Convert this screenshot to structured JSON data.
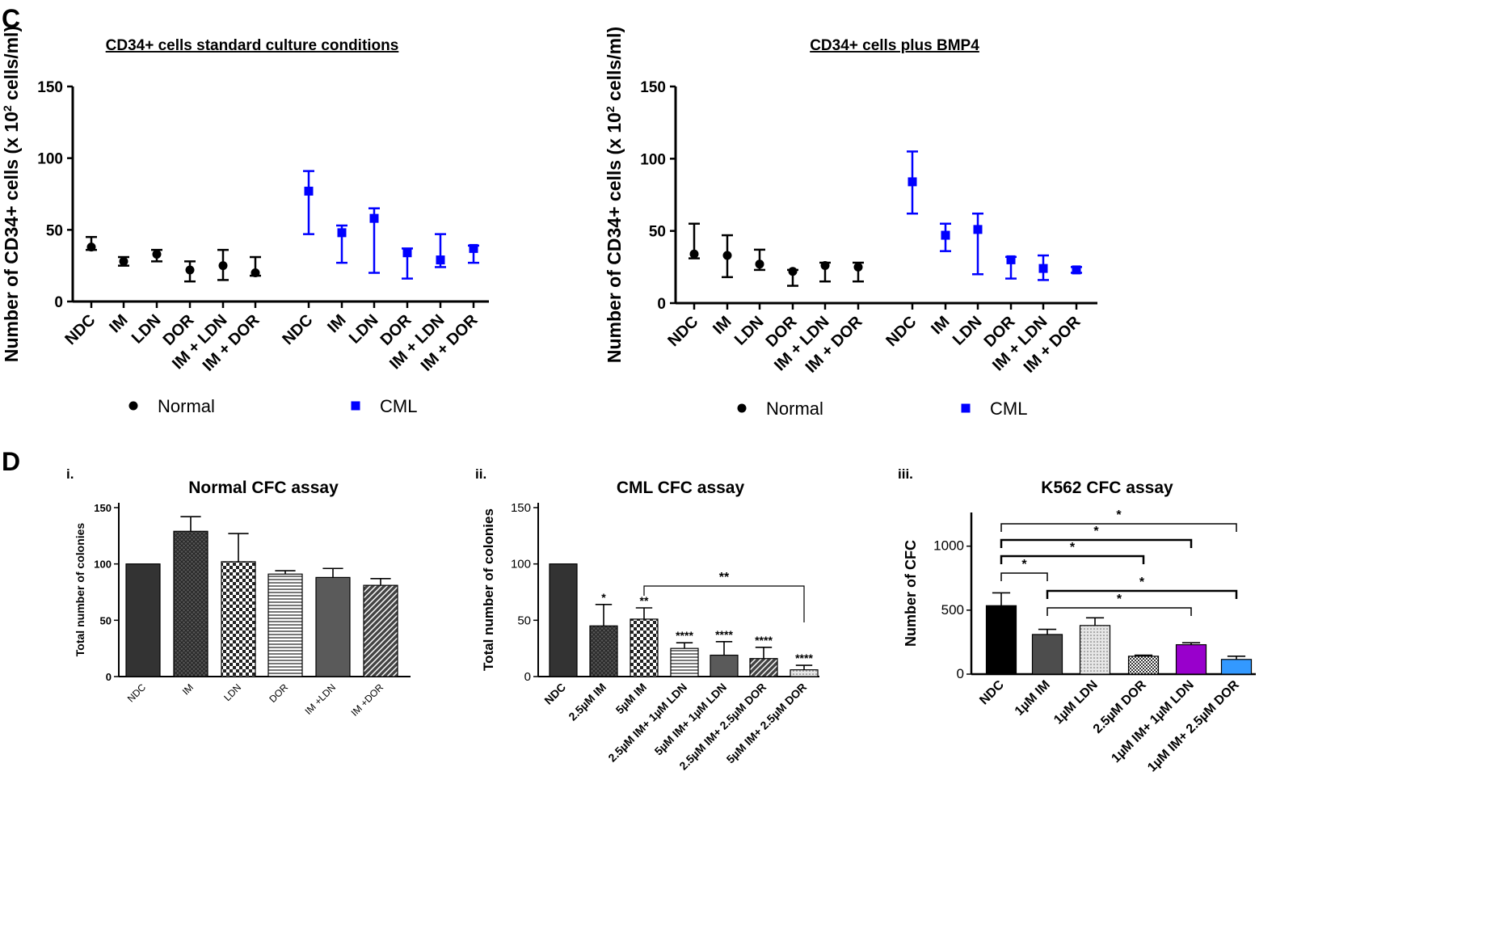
{
  "panels": {
    "c": "C",
    "d": "D"
  },
  "chart_data": [
    {
      "id": "c1",
      "type": "scatter",
      "title": "CD34+ cells standard culture conditions",
      "ylabel_pre": "Number of CD34+ cells (x 10",
      "ylabel_sup": "2",
      "ylabel_post": " cells/ml)",
      "ylim": [
        0,
        150
      ],
      "yticks": [
        "0",
        "50",
        "100",
        "150"
      ],
      "categories": [
        "NDC",
        "IM",
        "LDN",
        "DOR",
        "IM + LDN",
        "IM + DOR"
      ],
      "series": [
        {
          "name": "Normal",
          "color": "#000000",
          "marker": "circle",
          "values": [
            38,
            28,
            33,
            22,
            25,
            20
          ],
          "upper": [
            45,
            31,
            36,
            28,
            36,
            31
          ],
          "lower": [
            36,
            25,
            28,
            14,
            15,
            18
          ]
        },
        {
          "name": "CML",
          "color": "#0000ff",
          "marker": "square",
          "values": [
            77,
            48,
            58,
            34,
            29,
            37
          ],
          "upper": [
            91,
            53,
            65,
            37,
            47,
            39
          ],
          "lower": [
            47,
            27,
            20,
            16,
            24,
            27
          ]
        }
      ]
    },
    {
      "id": "c2",
      "type": "scatter",
      "title": "CD34+ cells plus BMP4",
      "ylabel_pre": "Number of CD34+ cells (x 10",
      "ylabel_sup": "2",
      "ylabel_post": " cells/ml)",
      "ylim": [
        0,
        150
      ],
      "yticks": [
        "0",
        "50",
        "100",
        "150"
      ],
      "categories": [
        "NDC",
        "IM",
        "LDN",
        "DOR",
        "IM + LDN",
        "IM + DOR"
      ],
      "series": [
        {
          "name": "Normal",
          "color": "#000000",
          "marker": "circle",
          "values": [
            34,
            33,
            27,
            22,
            26,
            25
          ],
          "upper": [
            55,
            47,
            37,
            23,
            28,
            28
          ],
          "lower": [
            31,
            18,
            23,
            12,
            15,
            15
          ]
        },
        {
          "name": "CML",
          "color": "#0000ff",
          "marker": "square",
          "values": [
            84,
            47,
            51,
            30,
            24,
            23
          ],
          "upper": [
            105,
            55,
            62,
            32,
            33,
            25
          ],
          "lower": [
            62,
            36,
            20,
            17,
            16,
            21
          ]
        }
      ]
    },
    {
      "id": "d1",
      "type": "bar",
      "sublabel": "i.",
      "title": "Normal CFC assay",
      "ylabel": "Total number of colonies",
      "ylim": [
        0,
        150
      ],
      "yticks": [
        "0",
        "50",
        "100",
        "150"
      ],
      "categories": [
        "NDC",
        "IM",
        "LDN",
        "DOR",
        "IM +LDN",
        "IM +DOR"
      ],
      "values": [
        100,
        129,
        102,
        91,
        88,
        81
      ],
      "errors": [
        0,
        13,
        25,
        3,
        8,
        6
      ],
      "patterns": [
        "solid",
        "crosshatch",
        "checker",
        "hlines",
        "solidgray",
        "diag"
      ]
    },
    {
      "id": "d2",
      "type": "bar",
      "sublabel": "ii.",
      "title": "CML CFC assay",
      "ylabel": "Total number of colonies",
      "ylim": [
        0,
        150
      ],
      "yticks": [
        "0",
        "50",
        "100",
        "150"
      ],
      "categories": [
        "NDC",
        "2.5µM IM",
        "5µM IM",
        "2.5µM IM+ 1µM LDN",
        "5µM IM+ 1µM LDN",
        "2.5µM IM+ 2.5µM DOR",
        "5µM IM+ 2.5µM DOR"
      ],
      "values": [
        100,
        45,
        51,
        25,
        19,
        16,
        6
      ],
      "errors": [
        0,
        19,
        10,
        5,
        12,
        10,
        4
      ],
      "stars": [
        "",
        "*",
        "**",
        "****",
        "****",
        "****",
        "****"
      ],
      "patterns": [
        "solid",
        "crosshatch",
        "checker",
        "hlines",
        "solidgray",
        "diag",
        "dots"
      ],
      "brackets": [
        {
          "from": 2,
          "to": 6,
          "label": "**"
        }
      ]
    },
    {
      "id": "d3",
      "type": "bar",
      "sublabel": "iii.",
      "title": "K562 CFC assay",
      "ylabel": "Number of CFC",
      "ylim": [
        0,
        1200
      ],
      "yticks": [
        "0",
        "500",
        "1000"
      ],
      "categories": [
        "NDC",
        "1µM IM",
        "1µM LDN",
        "2.5µM DOR",
        "1µM IM+ 1µM LDN",
        "1µM IM+ 2.5µM DOR"
      ],
      "values": [
        535,
        310,
        380,
        140,
        230,
        115
      ],
      "errors": [
        100,
        40,
        60,
        8,
        15,
        25
      ],
      "colors": [
        "#000000",
        "#4d4d4d",
        "#d9d9d9",
        "#ffffff",
        "#9900cc",
        "#3399ff"
      ],
      "patterns": [
        "solid",
        "solid",
        "dots",
        "checkfine",
        "solid",
        "solid"
      ],
      "brackets": [
        {
          "from": 0,
          "to": 5,
          "label": "*"
        },
        {
          "from": 0,
          "to": 4,
          "label": "*"
        },
        {
          "from": 0,
          "to": 3,
          "label": "*"
        },
        {
          "from": 0,
          "to": 1,
          "label": "*"
        },
        {
          "from": 1,
          "to": 5,
          "label": "*"
        },
        {
          "from": 1,
          "to": 4,
          "label": "*"
        }
      ]
    }
  ]
}
